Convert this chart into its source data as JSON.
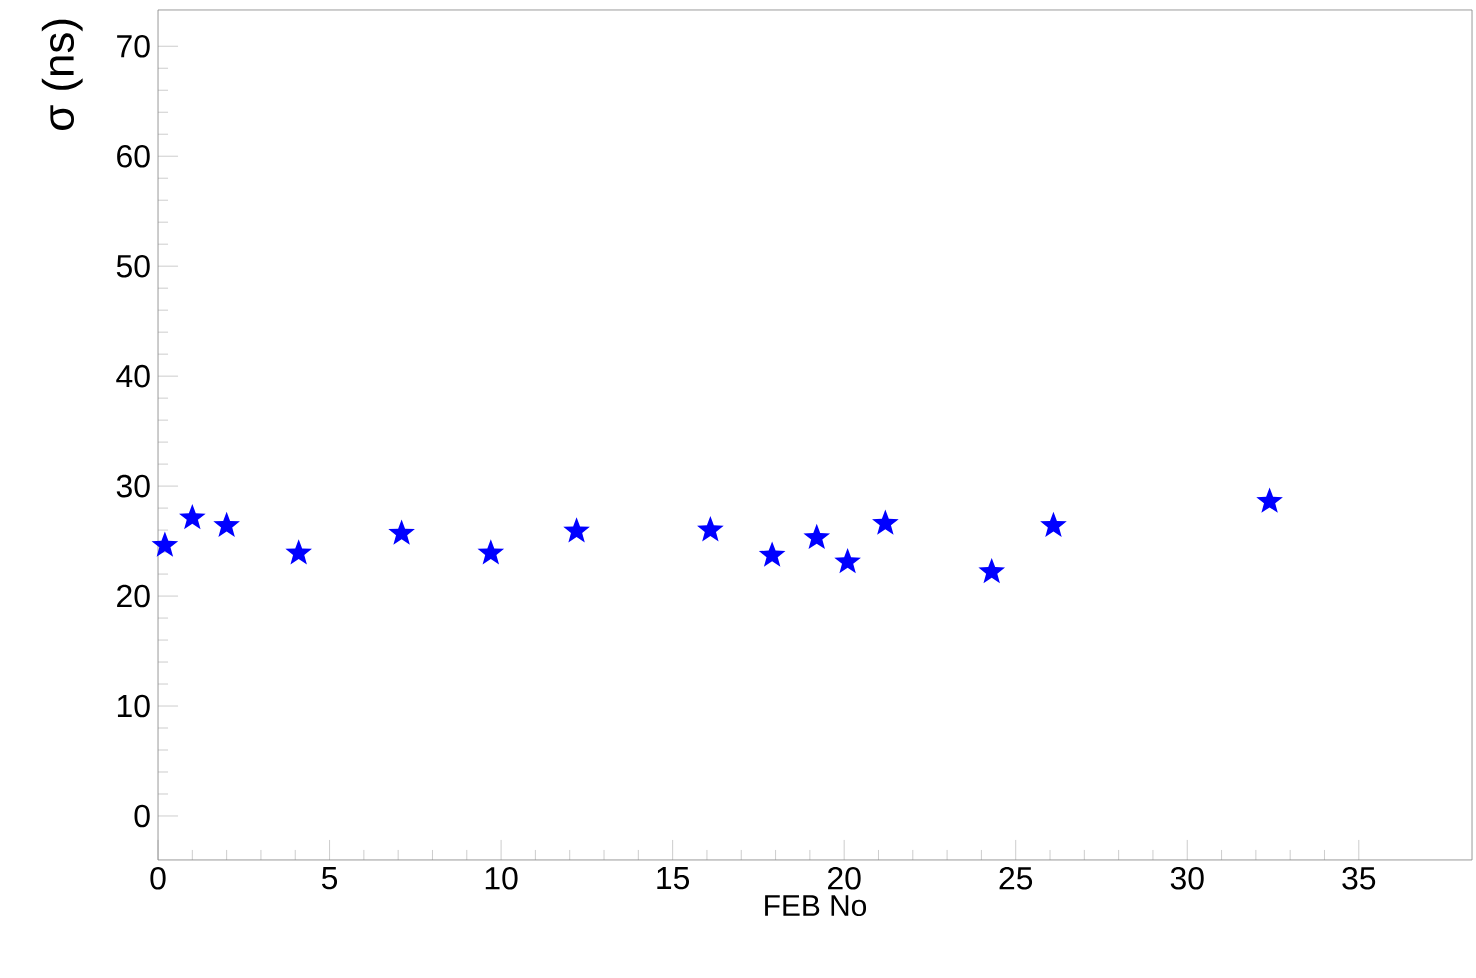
{
  "chart_data": {
    "type": "scatter",
    "xlabel": "FEB No",
    "ylabel": "σ (ns)",
    "x": [
      0.2,
      1.0,
      2.0,
      4.1,
      7.1,
      9.7,
      12.2,
      16.1,
      17.9,
      19.2,
      20.1,
      21.2,
      24.3,
      26.1,
      32.4
    ],
    "series": [
      {
        "color": "#0000ff",
        "values": [
          24.6,
          27.1,
          26.4,
          23.9,
          25.7,
          23.9,
          25.9,
          26.0,
          23.7,
          25.3,
          23.1,
          26.6,
          22.2,
          26.4,
          28.6
        ]
      }
    ],
    "xlim": [
      0,
      38.3
    ],
    "ylim": [
      -4,
      73.3
    ],
    "xticks": [
      0,
      5,
      10,
      15,
      20,
      25,
      30,
      35
    ],
    "yticks": [
      0,
      10,
      20,
      30,
      40,
      50,
      60,
      70
    ],
    "marker": "star",
    "grid": false
  }
}
